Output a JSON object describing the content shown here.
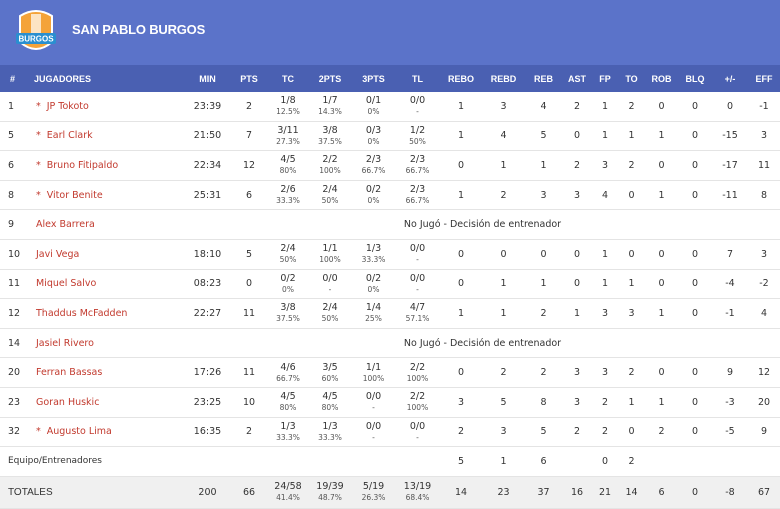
{
  "header": {
    "title": "SAN PABLO BURGOS",
    "logo_text": "BURGOS"
  },
  "table": {
    "columns": [
      "#",
      "JUGADORES",
      "MIN",
      "PTS",
      "TC",
      "2PTS",
      "3PTS",
      "TL",
      "REBO",
      "REBD",
      "REB",
      "AST",
      "FP",
      "TO",
      "ROB",
      "BLQ",
      "+/-",
      "EFF"
    ],
    "rows": [
      {
        "num": "1",
        "starter": "*",
        "name": "JP Tokoto",
        "stats": [
          "23:39",
          "2",
          [
            "1/8",
            "12.5%"
          ],
          [
            "1/7",
            "14.3%"
          ],
          [
            "0/1",
            "0%"
          ],
          [
            "0/0",
            "-"
          ],
          "1",
          "3",
          "4",
          "2",
          "1",
          "2",
          "0",
          "0",
          "0",
          "-1"
        ]
      },
      {
        "num": "5",
        "starter": "*",
        "name": "Earl Clark",
        "stats": [
          "21:50",
          "7",
          [
            "3/11",
            "27.3%"
          ],
          [
            "3/8",
            "37.5%"
          ],
          [
            "0/3",
            "0%"
          ],
          [
            "1/2",
            "50%"
          ],
          "1",
          "4",
          "5",
          "0",
          "1",
          "1",
          "1",
          "0",
          "-15",
          "3"
        ]
      },
      {
        "num": "6",
        "starter": "*",
        "name": "Bruno Fitipaldo",
        "stats": [
          "22:34",
          "12",
          [
            "4/5",
            "80%"
          ],
          [
            "2/2",
            "100%"
          ],
          [
            "2/3",
            "66.7%"
          ],
          [
            "2/3",
            "66.7%"
          ],
          "0",
          "1",
          "1",
          "2",
          "3",
          "2",
          "0",
          "0",
          "-17",
          "11"
        ]
      },
      {
        "num": "8",
        "starter": "*",
        "name": "Vitor Benite",
        "stats": [
          "25:31",
          "6",
          [
            "2/6",
            "33.3%"
          ],
          [
            "2/4",
            "50%"
          ],
          [
            "0/2",
            "0%"
          ],
          [
            "2/3",
            "66.7%"
          ],
          "1",
          "2",
          "3",
          "3",
          "4",
          "0",
          "1",
          "0",
          "-11",
          "8"
        ]
      },
      {
        "num": "9",
        "name": "Alex Barrera",
        "note": "No Jugó - Decisión de entrenador"
      },
      {
        "num": "10",
        "name": "Javi Vega",
        "stats": [
          "18:10",
          "5",
          [
            "2/4",
            "50%"
          ],
          [
            "1/1",
            "100%"
          ],
          [
            "1/3",
            "33.3%"
          ],
          [
            "0/0",
            "-"
          ],
          "0",
          "0",
          "0",
          "0",
          "1",
          "0",
          "0",
          "0",
          "7",
          "3"
        ]
      },
      {
        "num": "11",
        "name": "Miquel Salvo",
        "stats": [
          "08:23",
          "0",
          [
            "0/2",
            "0%"
          ],
          [
            "0/0",
            "-"
          ],
          [
            "0/2",
            "0%"
          ],
          [
            "0/0",
            "-"
          ],
          "0",
          "1",
          "1",
          "0",
          "1",
          "1",
          "0",
          "0",
          "-4",
          "-2"
        ]
      },
      {
        "num": "12",
        "name": "Thaddus McFadden",
        "stats": [
          "22:27",
          "11",
          [
            "3/8",
            "37.5%"
          ],
          [
            "2/4",
            "50%"
          ],
          [
            "1/4",
            "25%"
          ],
          [
            "4/7",
            "57.1%"
          ],
          "1",
          "1",
          "2",
          "1",
          "3",
          "3",
          "1",
          "0",
          "-1",
          "4"
        ]
      },
      {
        "num": "14",
        "name": "Jasiel Rivero",
        "note": "No Jugó - Decisión de entrenador"
      },
      {
        "num": "20",
        "name": "Ferran Bassas",
        "stats": [
          "17:26",
          "11",
          [
            "4/6",
            "66.7%"
          ],
          [
            "3/5",
            "60%"
          ],
          [
            "1/1",
            "100%"
          ],
          [
            "2/2",
            "100%"
          ],
          "0",
          "2",
          "2",
          "3",
          "3",
          "2",
          "0",
          "0",
          "9",
          "12"
        ]
      },
      {
        "num": "23",
        "name": "Goran Huskic",
        "stats": [
          "23:25",
          "10",
          [
            "4/5",
            "80%"
          ],
          [
            "4/5",
            "80%"
          ],
          [
            "0/0",
            "-"
          ],
          [
            "2/2",
            "100%"
          ],
          "3",
          "5",
          "8",
          "3",
          "2",
          "1",
          "1",
          "0",
          "-3",
          "20"
        ]
      },
      {
        "num": "32",
        "starter": "*",
        "name": "Augusto Lima",
        "stats": [
          "16:35",
          "2",
          [
            "1/3",
            "33.3%"
          ],
          [
            "1/3",
            "33.3%"
          ],
          [
            "0/0",
            "-"
          ],
          [
            "0/0",
            "-"
          ],
          "2",
          "3",
          "5",
          "2",
          "2",
          "0",
          "2",
          "0",
          "-5",
          "9"
        ]
      }
    ],
    "team": {
      "label": "Equipo/Entrenadores",
      "stats": [
        null,
        null,
        null,
        null,
        null,
        null,
        "5",
        "1",
        "6",
        null,
        "0",
        "2",
        null,
        null,
        null,
        null
      ]
    },
    "totals": {
      "label": "TOTALES",
      "stats": [
        "200",
        "66",
        [
          "24/58",
          "41.4%"
        ],
        [
          "19/39",
          "48.7%"
        ],
        [
          "5/19",
          "26.3%"
        ],
        [
          "13/19",
          "68.4%"
        ],
        "14",
        "23",
        "37",
        "16",
        "21",
        "14",
        "6",
        "0",
        "-8",
        "67"
      ]
    }
  }
}
